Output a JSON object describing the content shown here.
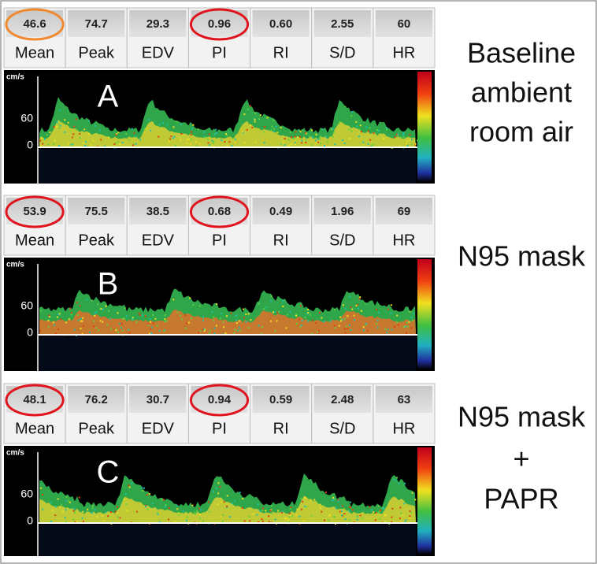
{
  "panels": [
    {
      "letter": "A",
      "unit": "cm/s",
      "ticks": [
        "60",
        "0"
      ],
      "metrics": [
        {
          "value": "46.6",
          "label": "Mean"
        },
        {
          "value": "74.7",
          "label": "Peak"
        },
        {
          "value": "29.3",
          "label": "EDV"
        },
        {
          "value": "0.96",
          "label": "PI"
        },
        {
          "value": "0.60",
          "label": "RI"
        },
        {
          "value": "2.55",
          "label": "S/D"
        },
        {
          "value": "60",
          "label": "HR"
        }
      ],
      "caption": [
        "Baseline",
        "ambient",
        "room air"
      ]
    },
    {
      "letter": "B",
      "unit": "cm/s",
      "ticks": [
        "60",
        "0"
      ],
      "metrics": [
        {
          "value": "53.9",
          "label": "Mean"
        },
        {
          "value": "75.5",
          "label": "Peak"
        },
        {
          "value": "38.5",
          "label": "EDV"
        },
        {
          "value": "0.68",
          "label": "PI"
        },
        {
          "value": "0.49",
          "label": "RI"
        },
        {
          "value": "1.96",
          "label": "S/D"
        },
        {
          "value": "69",
          "label": "HR"
        }
      ],
      "caption": [
        "N95 mask"
      ]
    },
    {
      "letter": "C",
      "unit": "cm/s",
      "ticks": [
        "60",
        "0"
      ],
      "metrics": [
        {
          "value": "48.1",
          "label": "Mean"
        },
        {
          "value": "76.2",
          "label": "Peak"
        },
        {
          "value": "30.7",
          "label": "EDV"
        },
        {
          "value": "0.94",
          "label": "PI"
        },
        {
          "value": "0.59",
          "label": "RI"
        },
        {
          "value": "2.48",
          "label": "S/D"
        },
        {
          "value": "63",
          "label": "HR"
        }
      ],
      "caption": [
        "N95 mask",
        "+",
        "PAPR"
      ]
    }
  ]
}
